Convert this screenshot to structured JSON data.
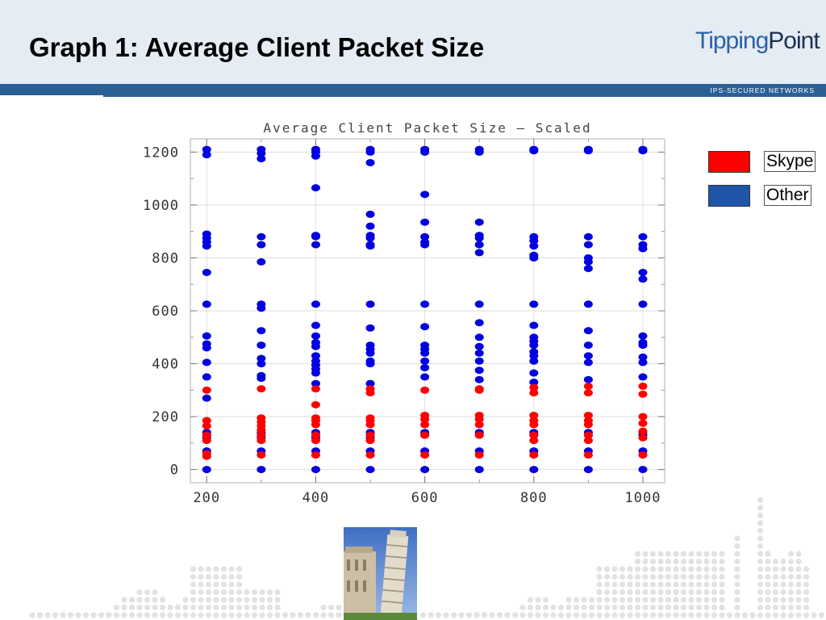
{
  "slide": {
    "title": "Graph 1: Average Client Packet Size",
    "logo_part1": "Tipping",
    "logo_part2": "Point",
    "tagline": "IPS-SECURED NETWORKS"
  },
  "colors": {
    "header_bg": "#e6ecf4",
    "band": "#2c5f94",
    "skype": "#ff0000",
    "other": "#0000e0",
    "legend_other_swatch": "#1f55a8"
  },
  "legend": {
    "items": [
      {
        "label": "Skype",
        "color": "#ff0000"
      },
      {
        "label": "Other",
        "color": "#1f55a8"
      }
    ]
  },
  "photo": {
    "icon": "leaning-tower-photo"
  },
  "chart_data": {
    "type": "scatter",
    "title": "Average Client Packet Size — Scaled",
    "xlabel": "",
    "ylabel": "",
    "xlim": [
      170,
      1040
    ],
    "ylim": [
      -50,
      1250
    ],
    "xticks": [
      200,
      400,
      600,
      800,
      1000
    ],
    "yticks": [
      0,
      200,
      400,
      600,
      800,
      1000,
      1200
    ],
    "grid": true,
    "legend_position": "right",
    "series": [
      {
        "name": "Skype",
        "color": "#ff0000",
        "points": [
          [
            200,
            300
          ],
          [
            200,
            185
          ],
          [
            200,
            165
          ],
          [
            200,
            130
          ],
          [
            200,
            110
          ],
          [
            200,
            60
          ],
          [
            200,
            50
          ],
          [
            300,
            305
          ],
          [
            300,
            195
          ],
          [
            300,
            180
          ],
          [
            300,
            165
          ],
          [
            300,
            150
          ],
          [
            300,
            130
          ],
          [
            300,
            110
          ],
          [
            300,
            55
          ],
          [
            400,
            305
          ],
          [
            400,
            245
          ],
          [
            400,
            195
          ],
          [
            400,
            185
          ],
          [
            400,
            170
          ],
          [
            400,
            130
          ],
          [
            400,
            110
          ],
          [
            400,
            55
          ],
          [
            500,
            305
          ],
          [
            500,
            290
          ],
          [
            500,
            195
          ],
          [
            500,
            185
          ],
          [
            500,
            170
          ],
          [
            500,
            130
          ],
          [
            500,
            110
          ],
          [
            500,
            55
          ],
          [
            600,
            300
          ],
          [
            600,
            205
          ],
          [
            600,
            190
          ],
          [
            600,
            170
          ],
          [
            600,
            130
          ],
          [
            600,
            55
          ],
          [
            700,
            305
          ],
          [
            700,
            300
          ],
          [
            700,
            205
          ],
          [
            700,
            190
          ],
          [
            700,
            170
          ],
          [
            700,
            130
          ],
          [
            700,
            55
          ],
          [
            800,
            310
          ],
          [
            800,
            290
          ],
          [
            800,
            205
          ],
          [
            800,
            185
          ],
          [
            800,
            170
          ],
          [
            800,
            130
          ],
          [
            800,
            110
          ],
          [
            800,
            55
          ],
          [
            900,
            315
          ],
          [
            900,
            290
          ],
          [
            900,
            205
          ],
          [
            900,
            185
          ],
          [
            900,
            170
          ],
          [
            900,
            130
          ],
          [
            900,
            110
          ],
          [
            900,
            55
          ],
          [
            1000,
            315
          ],
          [
            1000,
            285
          ],
          [
            1000,
            200
          ],
          [
            1000,
            175
          ],
          [
            1000,
            145
          ],
          [
            1000,
            120
          ],
          [
            1000,
            55
          ]
        ]
      },
      {
        "name": "Other",
        "color": "#0000e0",
        "points": [
          [
            200,
            1210
          ],
          [
            200,
            1190
          ],
          [
            200,
            890
          ],
          [
            200,
            875
          ],
          [
            200,
            860
          ],
          [
            200,
            845
          ],
          [
            200,
            745
          ],
          [
            200,
            625
          ],
          [
            200,
            505
          ],
          [
            200,
            475
          ],
          [
            200,
            460
          ],
          [
            200,
            405
          ],
          [
            200,
            350
          ],
          [
            200,
            270
          ],
          [
            200,
            140
          ],
          [
            200,
            130
          ],
          [
            200,
            120
          ],
          [
            200,
            70
          ],
          [
            200,
            0
          ],
          [
            300,
            1210
          ],
          [
            300,
            1195
          ],
          [
            300,
            1175
          ],
          [
            300,
            880
          ],
          [
            300,
            850
          ],
          [
            300,
            785
          ],
          [
            300,
            625
          ],
          [
            300,
            610
          ],
          [
            300,
            525
          ],
          [
            300,
            470
          ],
          [
            300,
            420
          ],
          [
            300,
            400
          ],
          [
            300,
            355
          ],
          [
            300,
            345
          ],
          [
            300,
            140
          ],
          [
            300,
            130
          ],
          [
            300,
            120
          ],
          [
            300,
            70
          ],
          [
            300,
            0
          ],
          [
            400,
            1210
          ],
          [
            400,
            1200
          ],
          [
            400,
            1185
          ],
          [
            400,
            1065
          ],
          [
            400,
            885
          ],
          [
            400,
            880
          ],
          [
            400,
            850
          ],
          [
            400,
            625
          ],
          [
            400,
            545
          ],
          [
            400,
            505
          ],
          [
            400,
            480
          ],
          [
            400,
            465
          ],
          [
            400,
            430
          ],
          [
            400,
            410
          ],
          [
            400,
            395
          ],
          [
            400,
            380
          ],
          [
            400,
            365
          ],
          [
            400,
            325
          ],
          [
            400,
            140
          ],
          [
            400,
            130
          ],
          [
            400,
            120
          ],
          [
            400,
            70
          ],
          [
            400,
            0
          ],
          [
            500,
            1210
          ],
          [
            500,
            1200
          ],
          [
            500,
            1160
          ],
          [
            500,
            965
          ],
          [
            500,
            920
          ],
          [
            500,
            885
          ],
          [
            500,
            875
          ],
          [
            500,
            850
          ],
          [
            500,
            845
          ],
          [
            500,
            625
          ],
          [
            500,
            535
          ],
          [
            500,
            470
          ],
          [
            500,
            455
          ],
          [
            500,
            440
          ],
          [
            500,
            410
          ],
          [
            500,
            400
          ],
          [
            500,
            325
          ],
          [
            500,
            140
          ],
          [
            500,
            130
          ],
          [
            500,
            120
          ],
          [
            500,
            70
          ],
          [
            500,
            0
          ],
          [
            600,
            1210
          ],
          [
            600,
            1200
          ],
          [
            600,
            1040
          ],
          [
            600,
            935
          ],
          [
            600,
            880
          ],
          [
            600,
            860
          ],
          [
            600,
            850
          ],
          [
            600,
            625
          ],
          [
            600,
            540
          ],
          [
            600,
            470
          ],
          [
            600,
            455
          ],
          [
            600,
            440
          ],
          [
            600,
            410
          ],
          [
            600,
            385
          ],
          [
            600,
            350
          ],
          [
            600,
            140
          ],
          [
            600,
            130
          ],
          [
            600,
            70
          ],
          [
            600,
            0
          ],
          [
            700,
            1210
          ],
          [
            700,
            1200
          ],
          [
            700,
            935
          ],
          [
            700,
            885
          ],
          [
            700,
            875
          ],
          [
            700,
            850
          ],
          [
            700,
            820
          ],
          [
            700,
            625
          ],
          [
            700,
            555
          ],
          [
            700,
            500
          ],
          [
            700,
            465
          ],
          [
            700,
            440
          ],
          [
            700,
            410
          ],
          [
            700,
            375
          ],
          [
            700,
            340
          ],
          [
            700,
            140
          ],
          [
            700,
            130
          ],
          [
            700,
            70
          ],
          [
            700,
            0
          ],
          [
            800,
            1210
          ],
          [
            800,
            1205
          ],
          [
            800,
            880
          ],
          [
            800,
            865
          ],
          [
            800,
            845
          ],
          [
            800,
            810
          ],
          [
            800,
            800
          ],
          [
            800,
            625
          ],
          [
            800,
            545
          ],
          [
            800,
            500
          ],
          [
            800,
            485
          ],
          [
            800,
            470
          ],
          [
            800,
            445
          ],
          [
            800,
            430
          ],
          [
            800,
            410
          ],
          [
            800,
            365
          ],
          [
            800,
            330
          ],
          [
            800,
            140
          ],
          [
            800,
            130
          ],
          [
            800,
            70
          ],
          [
            800,
            0
          ],
          [
            900,
            1210
          ],
          [
            900,
            1205
          ],
          [
            900,
            880
          ],
          [
            900,
            850
          ],
          [
            900,
            800
          ],
          [
            900,
            785
          ],
          [
            900,
            760
          ],
          [
            900,
            625
          ],
          [
            900,
            525
          ],
          [
            900,
            470
          ],
          [
            900,
            430
          ],
          [
            900,
            405
          ],
          [
            900,
            340
          ],
          [
            900,
            140
          ],
          [
            900,
            130
          ],
          [
            900,
            70
          ],
          [
            900,
            0
          ],
          [
            1000,
            1210
          ],
          [
            1000,
            1205
          ],
          [
            1000,
            880
          ],
          [
            1000,
            850
          ],
          [
            1000,
            835
          ],
          [
            1000,
            745
          ],
          [
            1000,
            720
          ],
          [
            1000,
            625
          ],
          [
            1000,
            505
          ],
          [
            1000,
            480
          ],
          [
            1000,
            470
          ],
          [
            1000,
            425
          ],
          [
            1000,
            405
          ],
          [
            1000,
            350
          ],
          [
            1000,
            140
          ],
          [
            1000,
            130
          ],
          [
            1000,
            70
          ],
          [
            1000,
            0
          ]
        ]
      }
    ]
  }
}
